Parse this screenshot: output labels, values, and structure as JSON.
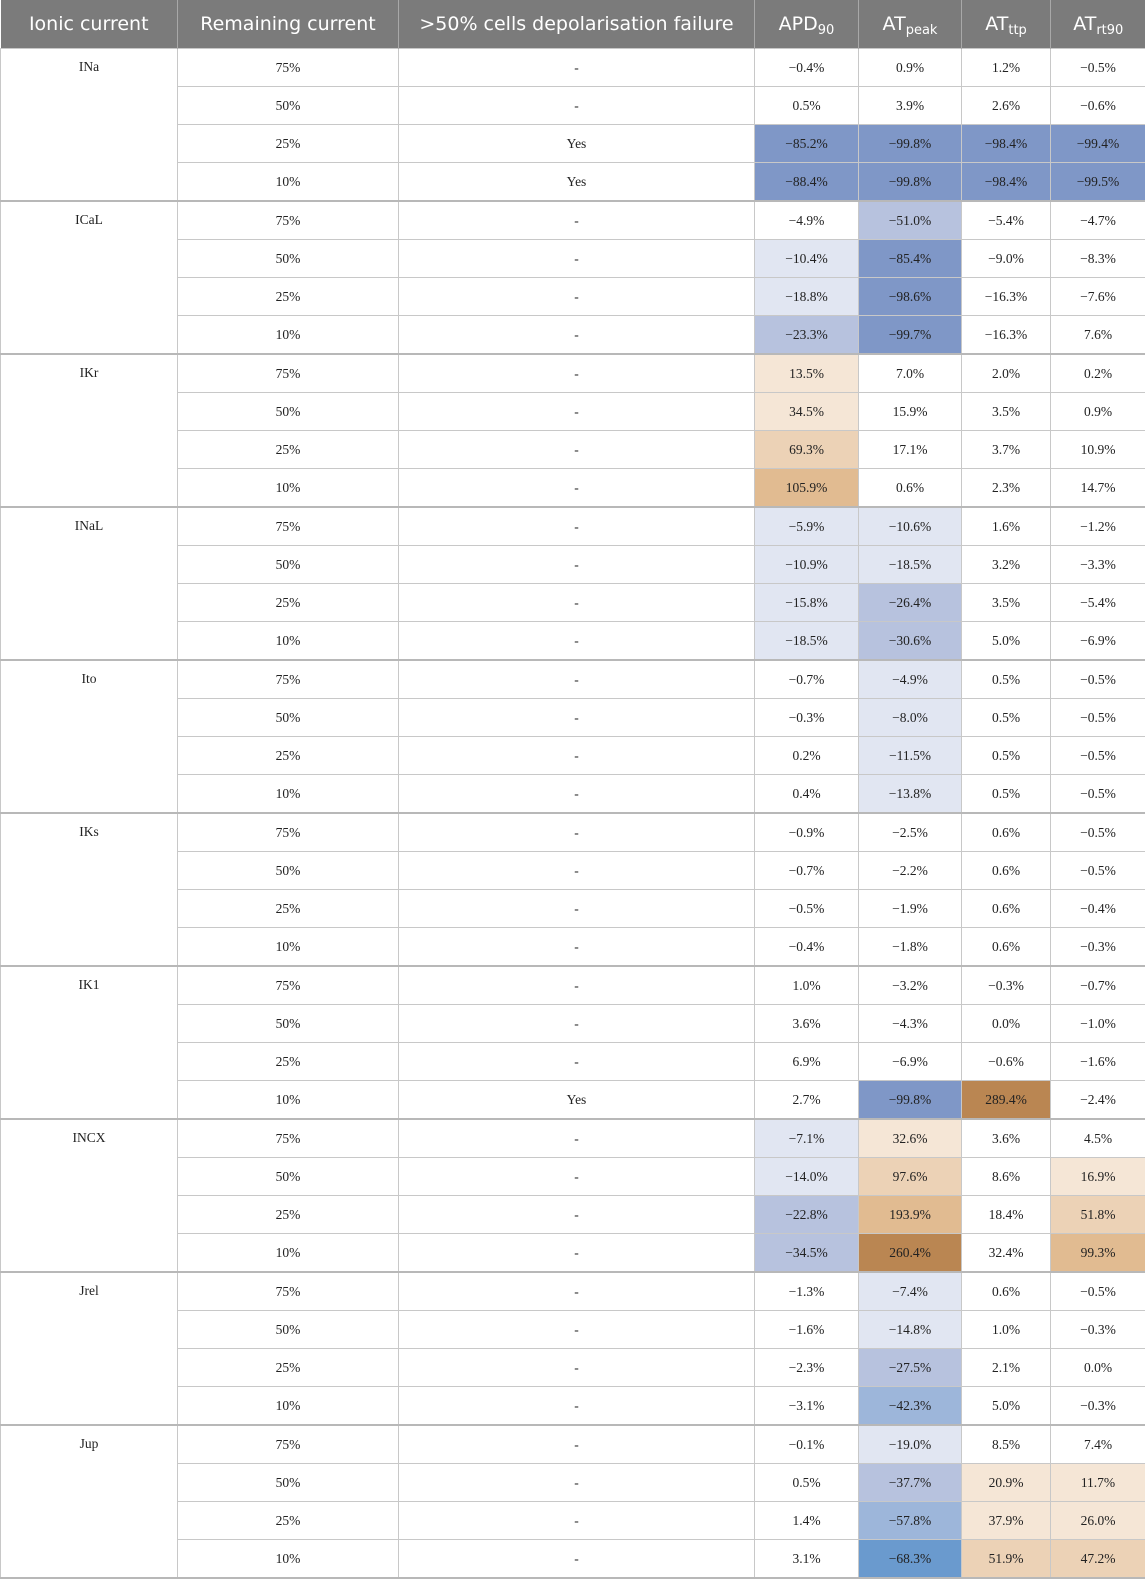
{
  "headers": {
    "ionic_current": "Ionic current",
    "remaining_current": "Remaining current",
    "depolarisation_failure": ">50% cells depolarisation failure",
    "apd90": {
      "base": "APD",
      "sub": "90"
    },
    "at_peak": {
      "base": "AT",
      "sub": "peak"
    },
    "at_ttp": {
      "base": "AT",
      "sub": "ttp"
    },
    "at_rt90": {
      "base": "AT",
      "sub": "rt90"
    }
  },
  "colors": {
    "blue_light": "#e1e6f2",
    "blue_mid": "#b7c2de",
    "blue_steel": "#9db6da",
    "blue_medium": "#6a9ace",
    "blue_dark": "#7f97c7",
    "orange_light": "#f5e6d6",
    "orange_mid": "#ecd2b6",
    "orange_strong": "#e1bb91",
    "orange_dark": "#ba8652"
  },
  "groups": [
    {
      "name": "INa",
      "rows": [
        {
          "remaining": "75%",
          "failure": "-",
          "apd90": "−0.4%",
          "at_peak": "0.9%",
          "at_ttp": "1.2%",
          "at_rt90": "−0.5%"
        },
        {
          "remaining": "50%",
          "failure": "-",
          "apd90": "0.5%",
          "at_peak": "3.9%",
          "at_ttp": "2.6%",
          "at_rt90": "−0.6%"
        },
        {
          "remaining": "25%",
          "failure": "Yes",
          "apd90": "−85.2%",
          "at_peak": "−99.8%",
          "at_ttp": "−98.4%",
          "at_rt90": "−99.4%",
          "shade": [
            "blue_dark",
            "blue_dark",
            "blue_dark",
            "blue_dark"
          ]
        },
        {
          "remaining": "10%",
          "failure": "Yes",
          "apd90": "−88.4%",
          "at_peak": "−99.8%",
          "at_ttp": "−98.4%",
          "at_rt90": "−99.5%",
          "shade": [
            "blue_dark",
            "blue_dark",
            "blue_dark",
            "blue_dark"
          ]
        }
      ]
    },
    {
      "name": "ICaL",
      "rows": [
        {
          "remaining": "75%",
          "failure": "-",
          "apd90": "−4.9%",
          "at_peak": "−51.0%",
          "at_ttp": "−5.4%",
          "at_rt90": "−4.7%",
          "shade": [
            null,
            "blue_mid",
            null,
            null
          ]
        },
        {
          "remaining": "50%",
          "failure": "-",
          "apd90": "−10.4%",
          "at_peak": "−85.4%",
          "at_ttp": "−9.0%",
          "at_rt90": "−8.3%",
          "shade": [
            "blue_light",
            "blue_dark",
            null,
            null
          ]
        },
        {
          "remaining": "25%",
          "failure": "-",
          "apd90": "−18.8%",
          "at_peak": "−98.6%",
          "at_ttp": "−16.3%",
          "at_rt90": "−7.6%",
          "shade": [
            "blue_light",
            "blue_dark",
            null,
            null
          ]
        },
        {
          "remaining": "10%",
          "failure": "-",
          "apd90": "−23.3%",
          "at_peak": "−99.7%",
          "at_ttp": "−16.3%",
          "at_rt90": "7.6%",
          "shade": [
            "blue_mid",
            "blue_dark",
            null,
            null
          ]
        }
      ]
    },
    {
      "name": "IKr",
      "rows": [
        {
          "remaining": "75%",
          "failure": "-",
          "apd90": "13.5%",
          "at_peak": "7.0%",
          "at_ttp": "2.0%",
          "at_rt90": "0.2%",
          "shade": [
            "orange_light",
            null,
            null,
            null
          ]
        },
        {
          "remaining": "50%",
          "failure": "-",
          "apd90": "34.5%",
          "at_peak": "15.9%",
          "at_ttp": "3.5%",
          "at_rt90": "0.9%",
          "shade": [
            "orange_light",
            null,
            null,
            null
          ]
        },
        {
          "remaining": "25%",
          "failure": "-",
          "apd90": "69.3%",
          "at_peak": "17.1%",
          "at_ttp": "3.7%",
          "at_rt90": "10.9%",
          "shade": [
            "orange_mid",
            null,
            null,
            null
          ]
        },
        {
          "remaining": "10%",
          "failure": "-",
          "apd90": "105.9%",
          "at_peak": "0.6%",
          "at_ttp": "2.3%",
          "at_rt90": "14.7%",
          "shade": [
            "orange_strong",
            null,
            null,
            null
          ]
        }
      ]
    },
    {
      "name": "INaL",
      "rows": [
        {
          "remaining": "75%",
          "failure": "-",
          "apd90": "−5.9%",
          "at_peak": "−10.6%",
          "at_ttp": "1.6%",
          "at_rt90": "−1.2%",
          "shade": [
            "blue_light",
            "blue_light",
            null,
            null
          ]
        },
        {
          "remaining": "50%",
          "failure": "-",
          "apd90": "−10.9%",
          "at_peak": "−18.5%",
          "at_ttp": "3.2%",
          "at_rt90": "−3.3%",
          "shade": [
            "blue_light",
            "blue_light",
            null,
            null
          ]
        },
        {
          "remaining": "25%",
          "failure": "-",
          "apd90": "−15.8%",
          "at_peak": "−26.4%",
          "at_ttp": "3.5%",
          "at_rt90": "−5.4%",
          "shade": [
            "blue_light",
            "blue_mid",
            null,
            null
          ]
        },
        {
          "remaining": "10%",
          "failure": "-",
          "apd90": "−18.5%",
          "at_peak": "−30.6%",
          "at_ttp": "5.0%",
          "at_rt90": "−6.9%",
          "shade": [
            "blue_light",
            "blue_mid",
            null,
            null
          ]
        }
      ]
    },
    {
      "name": "Ito",
      "rows": [
        {
          "remaining": "75%",
          "failure": "-",
          "apd90": "−0.7%",
          "at_peak": "−4.9%",
          "at_ttp": "0.5%",
          "at_rt90": "−0.5%",
          "shade": [
            null,
            "blue_light",
            null,
            null
          ]
        },
        {
          "remaining": "50%",
          "failure": "-",
          "apd90": "−0.3%",
          "at_peak": "−8.0%",
          "at_ttp": "0.5%",
          "at_rt90": "−0.5%",
          "shade": [
            null,
            "blue_light",
            null,
            null
          ]
        },
        {
          "remaining": "25%",
          "failure": "-",
          "apd90": "0.2%",
          "at_peak": "−11.5%",
          "at_ttp": "0.5%",
          "at_rt90": "−0.5%",
          "shade": [
            null,
            "blue_light",
            null,
            null
          ]
        },
        {
          "remaining": "10%",
          "failure": "-",
          "apd90": "0.4%",
          "at_peak": "−13.8%",
          "at_ttp": "0.5%",
          "at_rt90": "−0.5%",
          "shade": [
            null,
            "blue_light",
            null,
            null
          ]
        }
      ]
    },
    {
      "name": "IKs",
      "rows": [
        {
          "remaining": "75%",
          "failure": "-",
          "apd90": "−0.9%",
          "at_peak": "−2.5%",
          "at_ttp": "0.6%",
          "at_rt90": "−0.5%"
        },
        {
          "remaining": "50%",
          "failure": "-",
          "apd90": "−0.7%",
          "at_peak": "−2.2%",
          "at_ttp": "0.6%",
          "at_rt90": "−0.5%"
        },
        {
          "remaining": "25%",
          "failure": "-",
          "apd90": "−0.5%",
          "at_peak": "−1.9%",
          "at_ttp": "0.6%",
          "at_rt90": "−0.4%"
        },
        {
          "remaining": "10%",
          "failure": "-",
          "apd90": "−0.4%",
          "at_peak": "−1.8%",
          "at_ttp": "0.6%",
          "at_rt90": "−0.3%"
        }
      ]
    },
    {
      "name": "IK1",
      "rows": [
        {
          "remaining": "75%",
          "failure": "-",
          "apd90": "1.0%",
          "at_peak": "−3.2%",
          "at_ttp": "−0.3%",
          "at_rt90": "−0.7%"
        },
        {
          "remaining": "50%",
          "failure": "-",
          "apd90": "3.6%",
          "at_peak": "−4.3%",
          "at_ttp": "0.0%",
          "at_rt90": "−1.0%"
        },
        {
          "remaining": "25%",
          "failure": "-",
          "apd90": "6.9%",
          "at_peak": "−6.9%",
          "at_ttp": "−0.6%",
          "at_rt90": "−1.6%"
        },
        {
          "remaining": "10%",
          "failure": "Yes",
          "apd90": "2.7%",
          "at_peak": "−99.8%",
          "at_ttp": "289.4%",
          "at_rt90": "−2.4%",
          "shade": [
            null,
            "blue_dark",
            "orange_dark",
            null
          ]
        }
      ]
    },
    {
      "name": "INCX",
      "rows": [
        {
          "remaining": "75%",
          "failure": "-",
          "apd90": "−7.1%",
          "at_peak": "32.6%",
          "at_ttp": "3.6%",
          "at_rt90": "4.5%",
          "shade": [
            "blue_light",
            "orange_light",
            null,
            null
          ]
        },
        {
          "remaining": "50%",
          "failure": "-",
          "apd90": "−14.0%",
          "at_peak": "97.6%",
          "at_ttp": "8.6%",
          "at_rt90": "16.9%",
          "shade": [
            "blue_light",
            "orange_mid",
            null,
            "orange_light"
          ]
        },
        {
          "remaining": "25%",
          "failure": "-",
          "apd90": "−22.8%",
          "at_peak": "193.9%",
          "at_ttp": "18.4%",
          "at_rt90": "51.8%",
          "shade": [
            "blue_mid",
            "orange_strong",
            null,
            "orange_mid"
          ]
        },
        {
          "remaining": "10%",
          "failure": "-",
          "apd90": "−34.5%",
          "at_peak": "260.4%",
          "at_ttp": "32.4%",
          "at_rt90": "99.3%",
          "shade": [
            "blue_mid",
            "orange_dark",
            null,
            "orange_strong"
          ]
        }
      ]
    },
    {
      "name": "Jrel",
      "rows": [
        {
          "remaining": "75%",
          "failure": "-",
          "apd90": "−1.3%",
          "at_peak": "−7.4%",
          "at_ttp": "0.6%",
          "at_rt90": "−0.5%",
          "shade": [
            null,
            "blue_light",
            null,
            null
          ]
        },
        {
          "remaining": "50%",
          "failure": "-",
          "apd90": "−1.6%",
          "at_peak": "−14.8%",
          "at_ttp": "1.0%",
          "at_rt90": "−0.3%",
          "shade": [
            null,
            "blue_light",
            null,
            null
          ]
        },
        {
          "remaining": "25%",
          "failure": "-",
          "apd90": "−2.3%",
          "at_peak": "−27.5%",
          "at_ttp": "2.1%",
          "at_rt90": "0.0%",
          "shade": [
            null,
            "blue_mid",
            null,
            null
          ]
        },
        {
          "remaining": "10%",
          "failure": "-",
          "apd90": "−3.1%",
          "at_peak": "−42.3%",
          "at_ttp": "5.0%",
          "at_rt90": "−0.3%",
          "shade": [
            null,
            "blue_steel",
            null,
            null
          ]
        }
      ]
    },
    {
      "name": "Jup",
      "rows": [
        {
          "remaining": "75%",
          "failure": "-",
          "apd90": "−0.1%",
          "at_peak": "−19.0%",
          "at_ttp": "8.5%",
          "at_rt90": "7.4%",
          "shade": [
            null,
            "blue_light",
            null,
            null
          ]
        },
        {
          "remaining": "50%",
          "failure": "-",
          "apd90": "0.5%",
          "at_peak": "−37.7%",
          "at_ttp": "20.9%",
          "at_rt90": "11.7%",
          "shade": [
            null,
            "blue_mid",
            "orange_light",
            "orange_light"
          ]
        },
        {
          "remaining": "25%",
          "failure": "-",
          "apd90": "1.4%",
          "at_peak": "−57.8%",
          "at_ttp": "37.9%",
          "at_rt90": "26.0%",
          "shade": [
            null,
            "blue_steel",
            "orange_light",
            "orange_light"
          ]
        },
        {
          "remaining": "10%",
          "failure": "-",
          "apd90": "3.1%",
          "at_peak": "−68.3%",
          "at_ttp": "51.9%",
          "at_rt90": "47.2%",
          "shade": [
            null,
            "blue_medium",
            "orange_mid",
            "orange_mid"
          ]
        }
      ]
    }
  ]
}
